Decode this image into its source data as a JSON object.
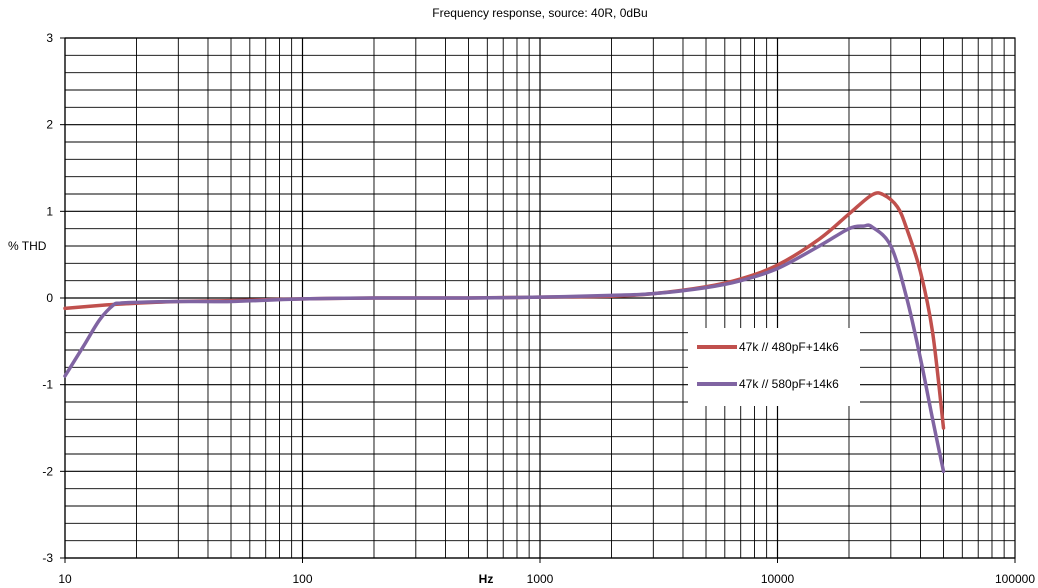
{
  "chart_data": {
    "type": "line",
    "title": "Frequency response, source: 40R, 0dBu",
    "xlabel": "Hz",
    "ylabel": "% THD",
    "x_scale": "log",
    "xlim": [
      10,
      100000
    ],
    "ylim": [
      -3,
      3
    ],
    "x_ticks": [
      10,
      100,
      1000,
      10000,
      100000
    ],
    "x_tick_labels": [
      "10",
      "100",
      "1000",
      "10000",
      "100000"
    ],
    "y_ticks": [
      -3,
      -2,
      -1,
      0,
      1,
      2,
      3
    ],
    "y_tick_labels": [
      "-3",
      "-2",
      "-1",
      "0",
      "1",
      "2",
      "3"
    ],
    "grid": true,
    "legend_position": "right",
    "series": [
      {
        "name": "47k // 480pF+14k6",
        "color": "#c0504d",
        "x": [
          10,
          15,
          20,
          30,
          50,
          100,
          200,
          500,
          1000,
          2000,
          3000,
          5000,
          7000,
          10000,
          15000,
          20000,
          25000,
          28000,
          32000,
          35000,
          40000,
          45000,
          50000
        ],
        "y": [
          -0.12,
          -0.08,
          -0.06,
          -0.04,
          -0.03,
          -0.01,
          0.0,
          0.0,
          0.01,
          0.02,
          0.05,
          0.13,
          0.22,
          0.38,
          0.68,
          0.97,
          1.19,
          1.19,
          1.05,
          0.8,
          0.3,
          -0.4,
          -1.5
        ]
      },
      {
        "name": "47k // 580pF+14k6",
        "color": "#8064a2",
        "x": [
          10,
          12,
          14,
          16,
          17,
          20,
          30,
          50,
          100,
          200,
          500,
          1000,
          2000,
          3000,
          5000,
          7000,
          10000,
          15000,
          20000,
          23000,
          25000,
          30000,
          35000,
          40000,
          45000,
          50000
        ],
        "y": [
          -0.9,
          -0.55,
          -0.25,
          -0.08,
          -0.06,
          -0.05,
          -0.04,
          -0.04,
          -0.01,
          0.0,
          0.0,
          0.01,
          0.03,
          0.05,
          0.12,
          0.2,
          0.34,
          0.6,
          0.8,
          0.83,
          0.82,
          0.6,
          0.0,
          -0.7,
          -1.4,
          -2.0
        ]
      }
    ]
  }
}
